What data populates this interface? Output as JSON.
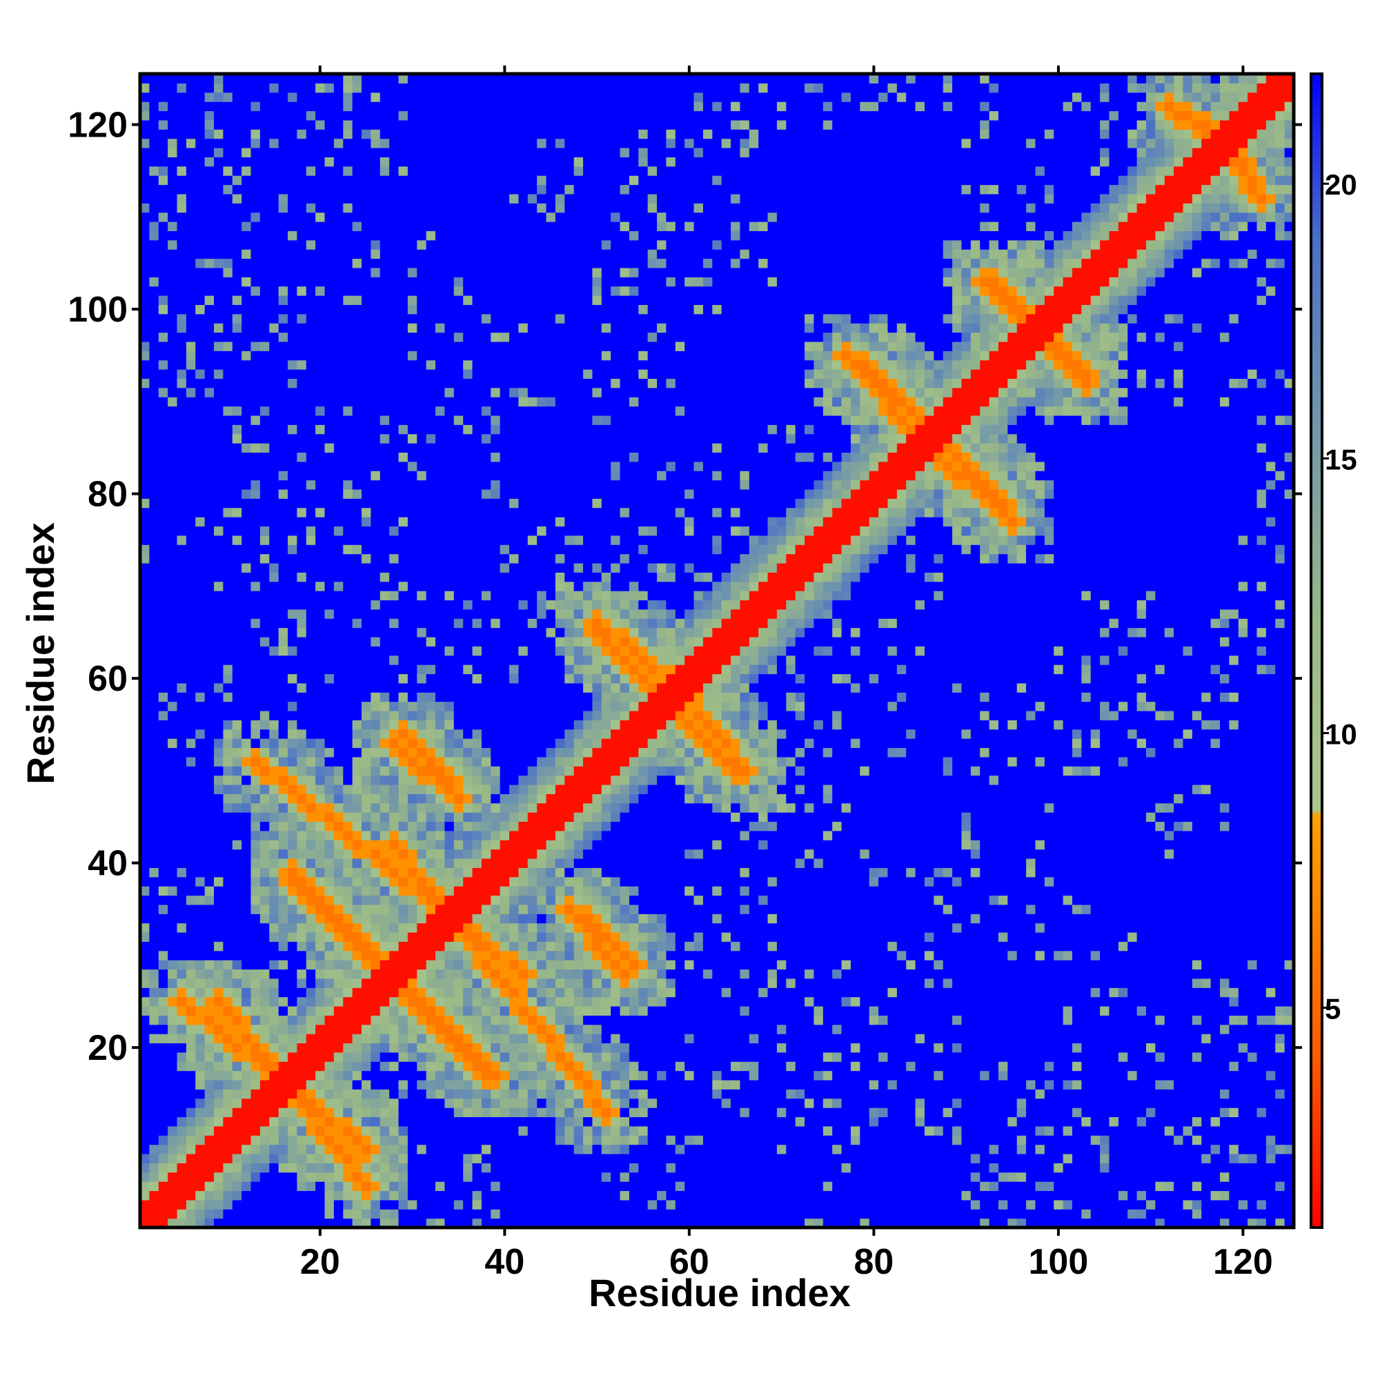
{
  "chart_data": {
    "type": "heatmap",
    "title": "",
    "xlabel": "Residue index",
    "ylabel": "Residue index",
    "n_residues": 125,
    "xlim": [
      1,
      125
    ],
    "ylim": [
      1,
      125
    ],
    "x_ticks": [
      20,
      40,
      60,
      80,
      100,
      120
    ],
    "y_ticks": [
      20,
      40,
      60,
      80,
      100,
      120
    ],
    "grid": false,
    "legend_placement": "right",
    "colorbar": {
      "min": 1,
      "max": 22,
      "ticks": [
        5,
        10,
        15,
        20
      ],
      "stops": [
        {
          "value": 1,
          "color": "#ff0000"
        },
        {
          "value": 4,
          "color": "#ff5a00"
        },
        {
          "value": 8.5,
          "color": "#ffa000"
        },
        {
          "value": 8.6,
          "color": "#aac88c"
        },
        {
          "value": 12,
          "color": "#99b888"
        },
        {
          "value": 16,
          "color": "#6d93ae"
        },
        {
          "value": 19,
          "color": "#4a6fc8"
        },
        {
          "value": 22,
          "color": "#0000ff"
        }
      ]
    },
    "background_value": 22,
    "diagonal_width": 2.5,
    "regions": [
      {
        "x": [
          1,
          125
        ],
        "y": [
          1,
          125
        ],
        "kind": "diagonal_band",
        "halo": 7
      },
      {
        "x": [
          9,
          25
        ],
        "y": [
          5,
          25
        ],
        "kind": "antidiagonal_strand",
        "value": 6
      },
      {
        "x": [
          17,
          38
        ],
        "y": [
          17,
          39
        ],
        "kind": "antidiagonal_strand",
        "value": 6
      },
      {
        "x": [
          28,
          51
        ],
        "y": [
          13,
          42
        ],
        "kind": "antidiagonal_strand",
        "value": 6
      },
      {
        "x": [
          28,
          35
        ],
        "y": [
          47,
          53
        ],
        "kind": "antidiagonal_strand",
        "value": 6
      },
      {
        "x": [
          49,
          54
        ],
        "y": [
          29,
          34
        ],
        "kind": "antidiagonal_strand",
        "value": 6
      },
      {
        "x": [
          50,
          58
        ],
        "y": [
          57,
          65
        ],
        "kind": "antidiagonal_strand",
        "value": 6
      },
      {
        "x": [
          58,
          66
        ],
        "y": [
          50,
          60
        ],
        "kind": "antidiagonal_strand",
        "value": 6
      },
      {
        "x": [
          79,
          88
        ],
        "y": [
          85,
          94
        ],
        "kind": "antidiagonal_strand",
        "value": 6
      },
      {
        "x": [
          85,
          95
        ],
        "y": [
          77,
          86
        ],
        "kind": "antidiagonal_strand",
        "value": 6
      },
      {
        "x": [
          92,
          103
        ],
        "y": [
          93,
          103
        ],
        "kind": "antidiagonal_strand",
        "value": 6
      },
      {
        "x": [
          112,
          120
        ],
        "y": [
          116,
          122
        ],
        "kind": "antidiagonal_strand",
        "value": 6
      }
    ]
  }
}
